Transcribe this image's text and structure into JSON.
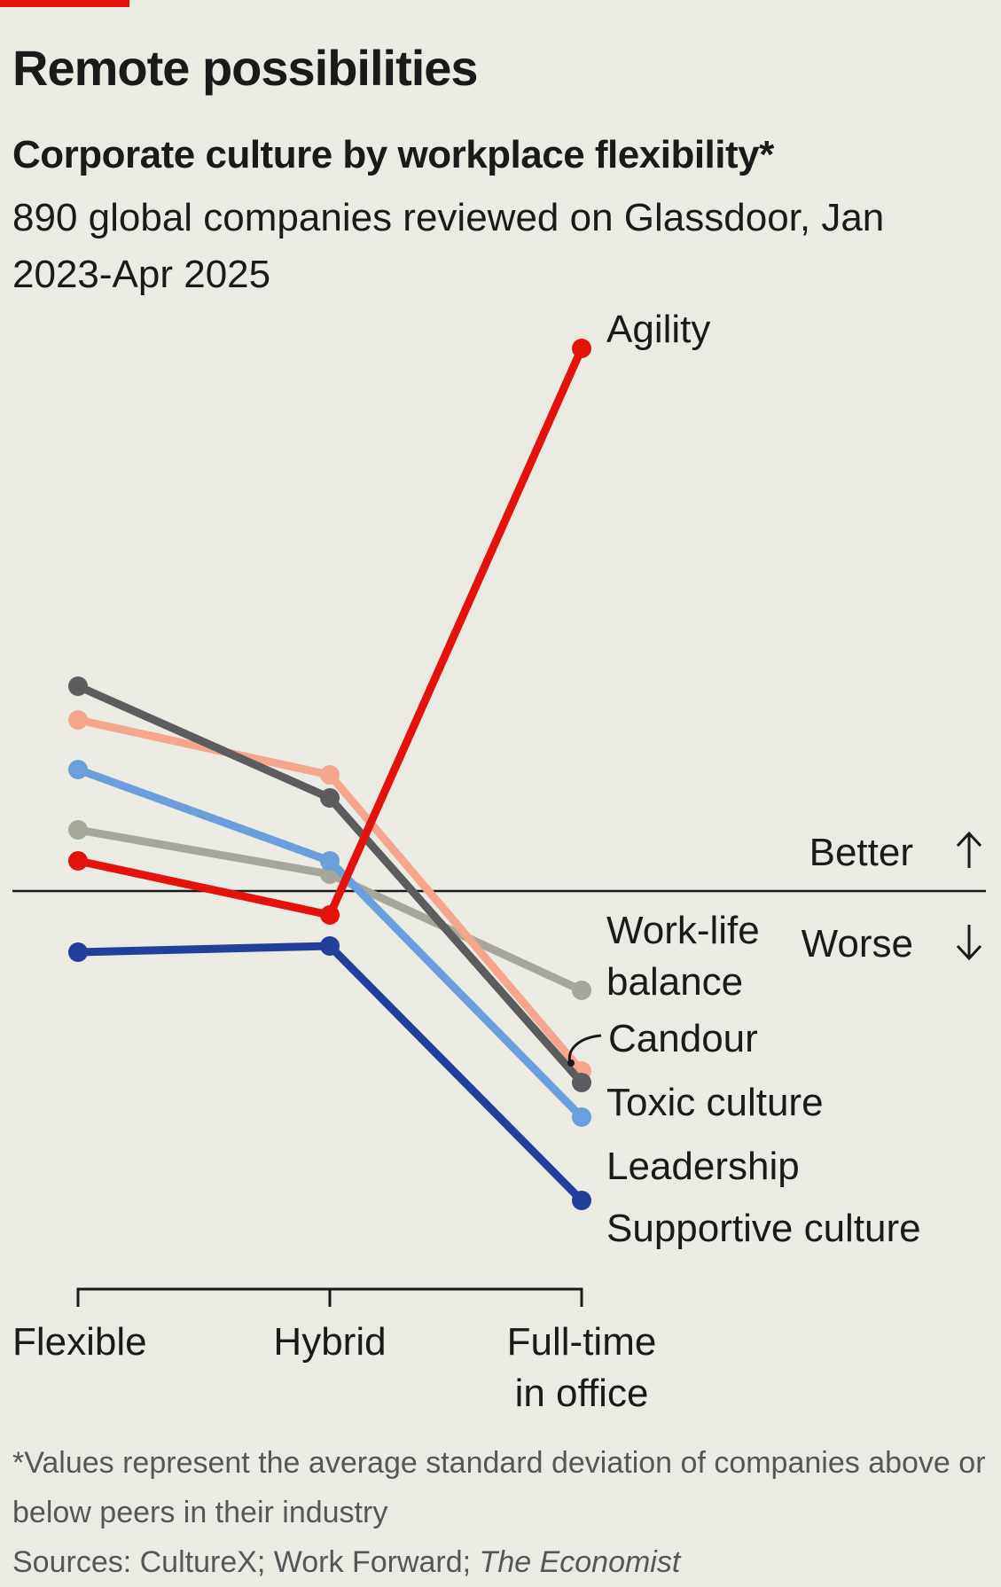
{
  "title": "Remote possibilities",
  "subtitle": "Corporate culture by workplace flexibility*",
  "description": "890 global companies reviewed on Glassdoor, Jan 2023-Apr 2025",
  "footnote": "*Values represent the average standard deviation of companies above or below peers in their industry",
  "sources_prefix": "Sources: CultureX; Work Forward; ",
  "sources_italic": "The Economist",
  "colors": {
    "agility": "#e3120b",
    "work_life_balance": "#a6a69a",
    "candour": "#f5a68c",
    "toxic_culture": "#5c5c5e",
    "leadership": "#6a9fdb",
    "supportive_culture": "#233f9c",
    "baseline": "#1a1a1a"
  },
  "chart_data": {
    "type": "line",
    "categories": [
      "Flexible",
      "Hybrid",
      "Full-time\nin office"
    ],
    "category_labels": [
      [
        "Flexible"
      ],
      [
        "Hybrid"
      ],
      [
        "Full-time",
        "in office"
      ]
    ],
    "ylim": [
      -0.36,
      0.62
    ],
    "zero_line": 0,
    "annotations": {
      "better": "Better",
      "worse": "Worse"
    },
    "series": [
      {
        "key": "work_life_balance",
        "name": "Work-life balance",
        "label_lines": [
          "Work-life",
          "balance"
        ],
        "values": [
          0.069,
          0.019,
          -0.112
        ]
      },
      {
        "key": "candour",
        "name": "Candour",
        "label_lines": [
          "Candour"
        ],
        "values": [
          0.193,
          0.131,
          -0.203
        ]
      },
      {
        "key": "toxic_culture",
        "name": "Toxic culture",
        "label_lines": [
          "Toxic culture"
        ],
        "values": [
          0.231,
          0.105,
          -0.216
        ]
      },
      {
        "key": "leadership",
        "name": "Leadership",
        "label_lines": [
          "Leadership"
        ],
        "values": [
          0.137,
          0.034,
          -0.255
        ]
      },
      {
        "key": "supportive_culture",
        "name": "Supportive culture",
        "label_lines": [
          "Supportive culture"
        ],
        "values": [
          -0.069,
          -0.062,
          -0.349
        ]
      },
      {
        "key": "agility",
        "name": "Agility",
        "label_lines": [
          "Agility"
        ],
        "values": [
          0.034,
          -0.027,
          0.612
        ]
      }
    ]
  }
}
